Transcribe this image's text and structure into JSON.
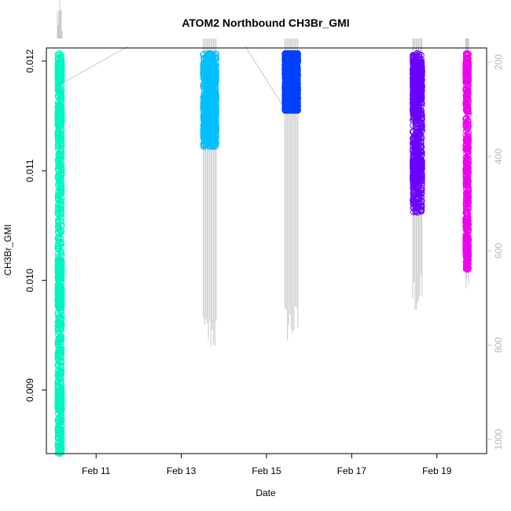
{
  "chart_data": {
    "type": "scatter",
    "title": "ATOM2 Northbound CH3Br_GMI",
    "xlabel": "Date",
    "ylabel": "CH3Br_GMI",
    "xlim": [
      "2016-02-09T20:00",
      "2016-02-20T04:00"
    ],
    "ylim": [
      0.00842,
      0.01212
    ],
    "x_ticks": [
      {
        "label": "Feb 11",
        "date": "2016-02-11"
      },
      {
        "label": "Feb 13",
        "date": "2016-02-13"
      },
      {
        "label": "Feb 15",
        "date": "2016-02-15"
      },
      {
        "label": "Feb 17",
        "date": "2016-02-17"
      },
      {
        "label": "Feb 19",
        "date": "2016-02-19"
      }
    ],
    "y_ticks": [
      "0.009",
      "0.010",
      "0.011",
      "0.012"
    ],
    "secondary_axis": {
      "side": "right",
      "color": "#bebebe",
      "ticks": [
        "200",
        "400",
        "600",
        "800",
        "1000"
      ],
      "lim": [
        1030,
        170
      ],
      "inverted": true
    },
    "series": [
      {
        "color": "#00f5c0",
        "x_range": [
          "2016-02-10T02:00",
          "2016-02-10T05:00"
        ],
        "y_top": 0.01207,
        "y_bottom": 0.00842,
        "y_dense": [
          0.00985,
          0.0101,
          0.0115,
          0.0119,
          0.0089
        ]
      },
      {
        "color": "#00bfff",
        "x_range": [
          "2016-02-13T12:00",
          "2016-02-13T20:00"
        ],
        "y_top": 0.01207,
        "y_bottom": 0.01122,
        "y_dense": [
          0.0116,
          0.0119,
          0.0114
        ]
      },
      {
        "color": "#0040ff",
        "x_range": [
          "2016-02-15T10:00",
          "2016-02-15T18:00"
        ],
        "y_top": 0.01207,
        "y_bottom": 0.01155,
        "y_dense": [
          0.0117,
          0.012,
          0.0116
        ]
      },
      {
        "color": "#6a00ff",
        "x_range": [
          "2016-02-18T10:00",
          "2016-02-18T16:00"
        ],
        "y_top": 0.01207,
        "y_bottom": 0.01062,
        "y_dense": [
          0.0117,
          0.0119,
          0.011
        ]
      },
      {
        "color": "#f000f0",
        "x_range": [
          "2016-02-19T16:00",
          "2016-02-19T18:00"
        ],
        "y_top": 0.01207,
        "y_bottom": 0.0101,
        "y_dense": [
          0.0103,
          0.0119
        ]
      }
    ],
    "altitude_trace": {
      "color": "#c8c8c8",
      "profiles": [
        {
          "x_range": [
            "2016-02-10T02:00",
            "2016-02-10T05:00"
          ],
          "max": 150
        },
        {
          "x_range": [
            "2016-02-13T12:00",
            "2016-02-13T20:00"
          ],
          "max": 820
        },
        {
          "x_range": [
            "2016-02-15T10:00",
            "2016-02-15T18:00"
          ],
          "max": 800
        },
        {
          "x_range": [
            "2016-02-18T10:00",
            "2016-02-18T16:00"
          ],
          "max": 740
        },
        {
          "x_range": [
            "2016-02-19T16:00",
            "2016-02-19T18:00"
          ],
          "max": 700
        }
      ]
    },
    "grid": false,
    "legend": "none"
  }
}
